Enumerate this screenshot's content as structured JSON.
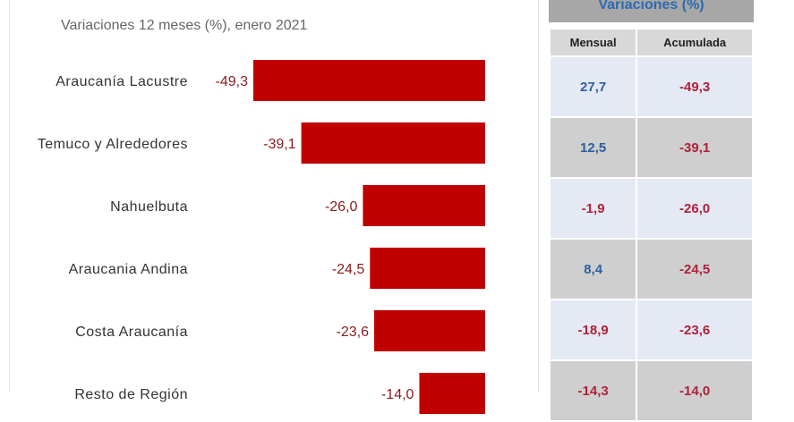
{
  "subtitle": "Variaciones 12 meses (%), enero 2021",
  "table": {
    "title": "Variaciones (%)",
    "headers": [
      "Mensual",
      "Acumulada"
    ],
    "rows": [
      {
        "mensual": "27,7",
        "acumulada": "-49,3"
      },
      {
        "mensual": "12,5",
        "acumulada": "-39,1"
      },
      {
        "mensual": "-1,9",
        "acumulada": "-26,0"
      },
      {
        "mensual": "8,4",
        "acumulada": "-24,5"
      },
      {
        "mensual": "-18,9",
        "acumulada": "-23,6"
      },
      {
        "mensual": "-14,3",
        "acumulada": "-14,0"
      }
    ]
  },
  "colors": {
    "bar": "#c00000",
    "label": "#8b1a1a",
    "positive": "#2f5f9e",
    "negative": "#b0213a"
  },
  "chart_data": {
    "type": "bar",
    "orientation": "horizontal",
    "title": "Variaciones 12 meses (%), enero 2021",
    "categories": [
      "Araucanía Lacustre",
      "Temuco y Alrededores",
      "Nahuelbuta",
      "Araucania Andina",
      "Costa Araucanía",
      "Resto de Región"
    ],
    "values": [
      -49.3,
      -39.1,
      -26.0,
      -24.5,
      -23.6,
      -14.0
    ],
    "value_labels": [
      "-49,3",
      "-39,1",
      "-26,0",
      "-24,5",
      "-23,6",
      "-14,0"
    ],
    "xlim": [
      -49.3,
      0
    ],
    "grid": false,
    "legend": "none"
  }
}
